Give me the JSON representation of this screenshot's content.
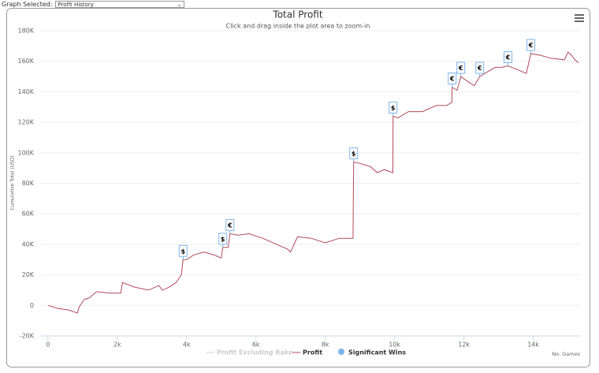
{
  "header": {
    "label": "Graph Selected:",
    "selected": "Profit History"
  },
  "chart_data": {
    "type": "line",
    "title": "Total Profit",
    "subtitle": "Click and drag inside the plot area to zoom-in",
    "y_label": "Cumulative Total (USD)",
    "x_label": "No. Games",
    "x": [
      0,
      300,
      600,
      850,
      900,
      1050,
      1200,
      1400,
      1800,
      2100,
      2150,
      2500,
      2900,
      3200,
      3300,
      3500,
      3700,
      3850,
      3900,
      4000,
      4200,
      4500,
      4800,
      5000,
      5045,
      5200,
      5250,
      5500,
      5800,
      6200,
      6600,
      6900,
      7000,
      7200,
      7600,
      8000,
      8400,
      8800,
      8818,
      9000,
      9300,
      9500,
      9700,
      9950,
      9955,
      10100,
      10400,
      10800,
      11200,
      11500,
      11650,
      11660,
      11800,
      11910,
      12100,
      12300,
      12455,
      12600,
      12900,
      13100,
      13270,
      13500,
      13800,
      13930,
      14200,
      14500,
      14900,
      15000,
      15100,
      15200,
      15300
    ],
    "series": [
      {
        "name": "Profit Excluding Rake",
        "color": "#cccccc",
        "hidden": true
      },
      {
        "name": "Profit",
        "color": "#b04a5a",
        "values": [
          0,
          -2000,
          -3000,
          -5000,
          -1000,
          4000,
          5000,
          9000,
          8000,
          8000,
          15000,
          12000,
          10000,
          13000,
          10000,
          12000,
          15000,
          20000,
          30000,
          30000,
          33000,
          35000,
          33000,
          31000,
          38000,
          38000,
          47000,
          46000,
          47000,
          44000,
          40000,
          37000,
          35000,
          45000,
          44000,
          41000,
          44000,
          44000,
          94000,
          93000,
          91000,
          87000,
          89000,
          87000,
          124000,
          123000,
          127000,
          127000,
          131000,
          131000,
          133000,
          143000,
          141000,
          150000,
          147000,
          144000,
          150000,
          152000,
          156000,
          156000,
          157000,
          155000,
          152000,
          165000,
          164000,
          162000,
          161000,
          166000,
          164000,
          161000,
          159000
        ]
      }
    ],
    "flags": {
      "name": "Significant Wins",
      "color": "#7cb5ec",
      "x": [
        3900,
        5045,
        5250,
        8818,
        9955,
        11660,
        11910,
        12455,
        13270,
        13930
      ],
      "values": [
        30000,
        38000,
        47000,
        94000,
        124000,
        143000,
        150000,
        150000,
        157000,
        165000
      ],
      "labels": [
        "$",
        "$",
        "€",
        "$",
        "$",
        "€",
        "€",
        "€",
        "€",
        "€"
      ]
    },
    "xlim": [
      -200,
      15350
    ],
    "ylim": [
      -20000,
      180000
    ],
    "xticks": [
      0,
      {
        "value": 2000,
        "label": "2k"
      },
      {
        "value": 4000,
        "label": "4k"
      },
      {
        "value": 6000,
        "label": "6k"
      },
      {
        "value": 8000,
        "label": "8k"
      },
      {
        "value": 10000,
        "label": "10k"
      },
      {
        "value": 12000,
        "label": "12k"
      },
      {
        "value": 14000,
        "label": "14k"
      }
    ],
    "yticks": [
      {
        "value": -20000,
        "label": "-20K"
      },
      0,
      {
        "value": 20000,
        "label": "20K"
      },
      {
        "value": 40000,
        "label": "40K"
      },
      {
        "value": 60000,
        "label": "60K"
      },
      {
        "value": 80000,
        "label": "80K"
      },
      {
        "value": 100000,
        "label": "100K"
      },
      {
        "value": 120000,
        "label": "120K"
      },
      {
        "value": 140000,
        "label": "140K"
      },
      {
        "value": 160000,
        "label": "160K"
      },
      {
        "value": 180000,
        "label": "180K"
      }
    ],
    "grid": true
  }
}
